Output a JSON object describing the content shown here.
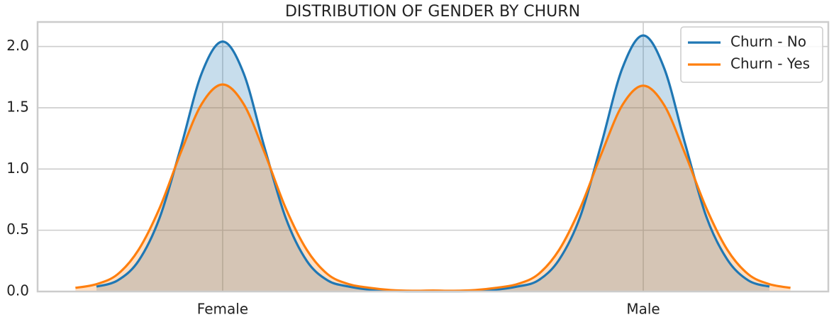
{
  "chart_data": {
    "type": "kde",
    "title": "DISTRIBUTION OF GENDER BY CHURN",
    "x": [
      -0.35,
      -0.3,
      -0.25,
      -0.2,
      -0.15,
      -0.1,
      -0.05,
      0,
      0.05,
      0.1,
      0.15,
      0.2,
      0.25,
      0.3,
      0.35,
      0.4,
      0.45,
      0.5,
      0.55,
      0.6,
      0.65,
      0.7,
      0.75,
      0.8,
      0.85,
      0.9,
      0.95,
      1,
      1.05,
      1.1,
      1.15,
      1.2,
      1.25,
      1.3,
      1.35
    ],
    "series": [
      {
        "name": "Churn - No",
        "color": "#1f77b4",
        "values": [
          null,
          0.04,
          0.09,
          0.25,
          0.6,
          1.17,
          1.78,
          2.04,
          1.78,
          1.17,
          0.6,
          0.25,
          0.09,
          0.04,
          0.015,
          0.005,
          0.002,
          0.002,
          0.002,
          0.005,
          0.015,
          0.04,
          0.09,
          0.26,
          0.61,
          1.2,
          1.82,
          2.09,
          1.82,
          1.2,
          0.61,
          0.26,
          0.09,
          0.04,
          null
        ]
      },
      {
        "name": "Churn - Yes",
        "color": "#ff7f0e",
        "values": [
          0.03,
          0.06,
          0.14,
          0.34,
          0.68,
          1.13,
          1.53,
          1.69,
          1.53,
          1.13,
          0.68,
          0.34,
          0.14,
          0.06,
          0.03,
          0.012,
          0.006,
          0.008,
          0.006,
          0.012,
          0.03,
          0.06,
          0.14,
          0.34,
          0.68,
          1.12,
          1.52,
          1.68,
          1.52,
          1.12,
          0.68,
          0.34,
          0.14,
          0.06,
          0.03
        ]
      }
    ],
    "xlim": [
      -0.44,
      1.44
    ],
    "xticks": [
      {
        "value": 0,
        "label": "Female"
      },
      {
        "value": 1,
        "label": "Male"
      }
    ],
    "ylim": [
      0,
      2.2
    ],
    "yticks": [
      {
        "value": 0,
        "label": "0.0"
      },
      0.5,
      {
        "value": 1,
        "label": "1.0"
      },
      1.5,
      {
        "value": 2,
        "label": "2.0"
      }
    ],
    "grid": true,
    "fill": true,
    "legend": "upper right"
  }
}
